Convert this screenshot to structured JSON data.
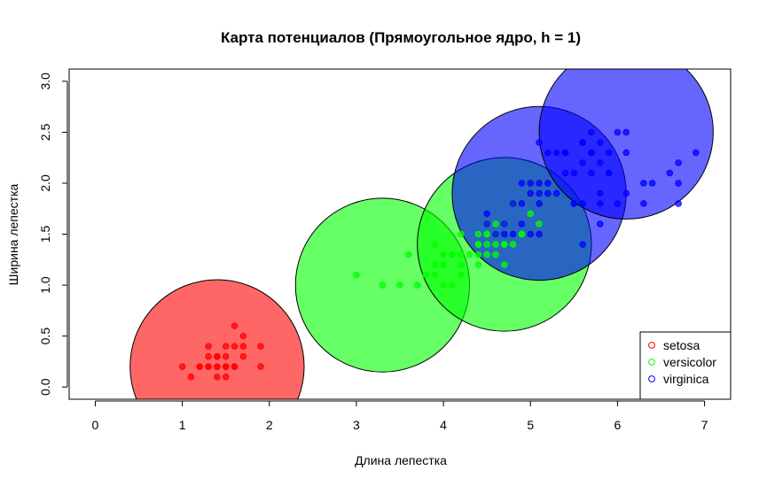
{
  "chart_data": {
    "type": "scatter",
    "title": "Карта потенциалов (Прямоугольное ядро, h = 1)",
    "xlabel": "Длина лепестка",
    "ylabel": "Ширина лепестка",
    "xlim": [
      -0.3,
      7.3
    ],
    "ylim": [
      -0.12,
      3.12
    ],
    "xticks": [
      "0",
      "1",
      "2",
      "3",
      "4",
      "5",
      "6",
      "7"
    ],
    "yticks": [
      "0.0",
      "0.5",
      "1.0",
      "1.5",
      "2.0",
      "2.5",
      "3.0"
    ],
    "grid": false,
    "legend": {
      "position": "bottom-right",
      "entries": [
        "setosa",
        "versicolor",
        "virginica"
      ]
    },
    "colors": {
      "setosa": "#ff0000",
      "versicolor": "#00ff00",
      "virginica": "#0000ff"
    },
    "potentials": [
      {
        "class": "setosa",
        "cx": 1.4,
        "cy": 0.2,
        "r": 1.0,
        "fill": "#ff0000",
        "opacity": 0.6
      },
      {
        "class": "versicolor",
        "cx": 3.3,
        "cy": 1.0,
        "r": 1.0,
        "fill": "#00ff00",
        "opacity": 0.6
      },
      {
        "class": "versicolor",
        "cx": 4.7,
        "cy": 1.4,
        "r": 1.0,
        "fill": "#00ff00",
        "opacity": 0.6
      },
      {
        "class": "virginica",
        "cx": 5.1,
        "cy": 1.9,
        "r": 1.0,
        "fill": "#0000ff",
        "opacity": 0.6
      },
      {
        "class": "virginica",
        "cx": 6.1,
        "cy": 2.5,
        "r": 1.0,
        "fill": "#0000ff",
        "opacity": 0.6
      }
    ],
    "series": [
      {
        "name": "setosa",
        "color": "#ff0000",
        "points": [
          [
            1.4,
            0.2
          ],
          [
            1.3,
            0.2
          ],
          [
            1.5,
            0.2
          ],
          [
            1.7,
            0.4
          ],
          [
            1.4,
            0.3
          ],
          [
            1.5,
            0.1
          ],
          [
            1.6,
            0.2
          ],
          [
            1.1,
            0.1
          ],
          [
            1.2,
            0.2
          ],
          [
            1.3,
            0.4
          ],
          [
            1.7,
            0.3
          ],
          [
            1.5,
            0.3
          ],
          [
            1.0,
            0.2
          ],
          [
            1.9,
            0.2
          ],
          [
            1.6,
            0.4
          ],
          [
            1.5,
            0.4
          ],
          [
            1.6,
            0.6
          ],
          [
            1.9,
            0.4
          ],
          [
            1.4,
            0.1
          ],
          [
            1.2,
            0.2
          ],
          [
            1.3,
            0.3
          ],
          [
            1.6,
            0.2
          ],
          [
            1.5,
            0.2
          ],
          [
            1.4,
            0.2
          ],
          [
            1.7,
            0.5
          ],
          [
            1.4,
            0.3
          ],
          [
            1.3,
            0.2
          ]
        ]
      },
      {
        "name": "versicolor",
        "color": "#00ff00",
        "points": [
          [
            4.7,
            1.4
          ],
          [
            4.5,
            1.5
          ],
          [
            4.9,
            1.5
          ],
          [
            4.0,
            1.3
          ],
          [
            4.6,
            1.5
          ],
          [
            4.5,
            1.3
          ],
          [
            4.7,
            1.6
          ],
          [
            3.3,
            1.0
          ],
          [
            4.6,
            1.3
          ],
          [
            3.9,
            1.4
          ],
          [
            3.5,
            1.0
          ],
          [
            4.2,
            1.5
          ],
          [
            4.0,
            1.0
          ],
          [
            4.7,
            1.4
          ],
          [
            3.6,
            1.3
          ],
          [
            4.4,
            1.4
          ],
          [
            4.5,
            1.5
          ],
          [
            4.1,
            1.0
          ],
          [
            3.9,
            1.1
          ],
          [
            4.8,
            1.8
          ],
          [
            4.0,
            1.3
          ],
          [
            4.9,
            1.5
          ],
          [
            4.7,
            1.2
          ],
          [
            4.3,
            1.3
          ],
          [
            4.4,
            1.4
          ],
          [
            4.8,
            1.4
          ],
          [
            5.0,
            1.7
          ],
          [
            3.8,
            1.1
          ],
          [
            3.7,
            1.0
          ],
          [
            3.9,
            1.2
          ],
          [
            5.1,
            1.6
          ],
          [
            4.5,
            1.6
          ],
          [
            4.4,
            1.3
          ],
          [
            4.1,
            1.3
          ],
          [
            4.0,
            1.2
          ],
          [
            4.4,
            1.2
          ],
          [
            4.6,
            1.4
          ],
          [
            4.0,
            1.2
          ],
          [
            3.0,
            1.1
          ],
          [
            4.2,
            1.3
          ],
          [
            4.2,
            1.2
          ],
          [
            4.1,
            1.3
          ],
          [
            4.2,
            1.1
          ],
          [
            4.5,
            1.4
          ],
          [
            4.4,
            1.5
          ],
          [
            4.6,
            1.6
          ]
        ]
      },
      {
        "name": "virginica",
        "color": "#0000ff",
        "points": [
          [
            6.0,
            2.5
          ],
          [
            5.1,
            1.9
          ],
          [
            5.9,
            2.1
          ],
          [
            5.6,
            1.8
          ],
          [
            5.8,
            2.2
          ],
          [
            6.6,
            2.1
          ],
          [
            4.5,
            1.7
          ],
          [
            6.3,
            1.8
          ],
          [
            5.8,
            1.8
          ],
          [
            6.1,
            2.5
          ],
          [
            5.1,
            2.0
          ],
          [
            5.3,
            1.9
          ],
          [
            5.5,
            2.1
          ],
          [
            5.0,
            2.0
          ],
          [
            5.1,
            2.4
          ],
          [
            5.3,
            2.3
          ],
          [
            5.5,
            1.8
          ],
          [
            6.7,
            2.2
          ],
          [
            6.9,
            2.3
          ],
          [
            5.0,
            1.5
          ],
          [
            5.7,
            2.3
          ],
          [
            4.9,
            2.0
          ],
          [
            6.7,
            2.0
          ],
          [
            4.9,
            1.8
          ],
          [
            5.7,
            2.1
          ],
          [
            6.0,
            1.8
          ],
          [
            4.8,
            1.8
          ],
          [
            5.8,
            1.6
          ],
          [
            6.1,
            1.9
          ],
          [
            6.4,
            2.0
          ],
          [
            5.6,
            2.2
          ],
          [
            5.1,
            1.5
          ],
          [
            5.6,
            1.4
          ],
          [
            6.1,
            2.3
          ],
          [
            5.6,
            2.4
          ],
          [
            5.5,
            1.8
          ],
          [
            5.4,
            2.1
          ],
          [
            5.6,
            2.4
          ],
          [
            5.2,
            2.3
          ],
          [
            5.0,
            1.9
          ],
          [
            5.2,
            2.0
          ],
          [
            5.4,
            2.3
          ],
          [
            5.1,
            1.8
          ],
          [
            6.7,
            1.8
          ],
          [
            5.7,
            2.5
          ],
          [
            5.8,
            2.4
          ],
          [
            5.2,
            1.9
          ],
          [
            4.7,
            1.6
          ],
          [
            4.9,
            1.6
          ],
          [
            4.5,
            1.6
          ],
          [
            5.9,
            2.3
          ],
          [
            5.4,
            2.3
          ],
          [
            5.7,
            2.3
          ],
          [
            5.9,
            2.1
          ],
          [
            6.3,
            2.0
          ],
          [
            4.7,
            1.5
          ],
          [
            5.8,
            1.9
          ],
          [
            4.8,
            1.5
          ],
          [
            4.6,
            1.5
          ]
        ]
      }
    ]
  }
}
